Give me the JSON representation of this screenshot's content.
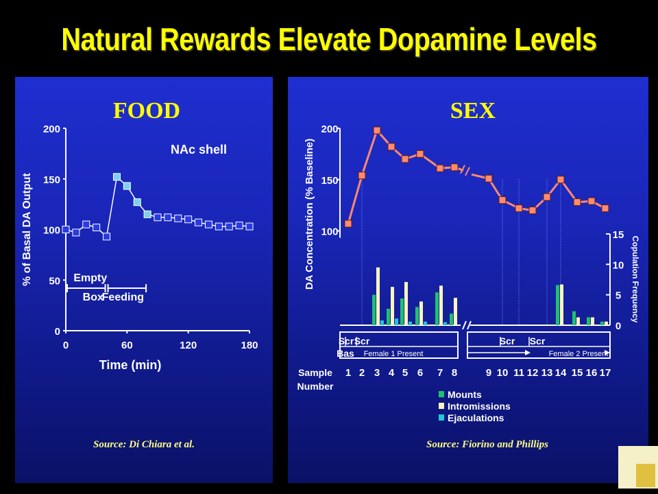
{
  "title": "Natural Rewards Elevate Dopamine Levels",
  "chart_data": [
    {
      "panel": "food",
      "type": "line",
      "title": "FOOD",
      "annotation": "NAc shell",
      "xlabel": "Time (min)",
      "ylabel": "% of Basal DA Output",
      "xlim": [
        0,
        180
      ],
      "ylim": [
        0,
        200
      ],
      "xticks": [
        "0",
        "60",
        "120",
        "180"
      ],
      "yticks": [
        "0",
        "50",
        "100",
        "150",
        "200"
      ],
      "grid": false,
      "phases": [
        {
          "label": "Empty",
          "sub_label": "Box",
          "x_start": 0,
          "x_end": 40
        },
        {
          "label": "Feeding",
          "x_start": 40,
          "x_end": 80
        }
      ],
      "series": [
        {
          "name": "",
          "x": [
            0,
            10,
            20,
            30,
            40,
            50,
            60,
            70,
            80,
            90,
            100,
            110,
            120,
            130,
            140,
            150,
            160,
            170,
            180
          ],
          "y": [
            100,
            97,
            105,
            102,
            93,
            152,
            143,
            127,
            115,
            112,
            112,
            111,
            110,
            107,
            105,
            103,
            103,
            104,
            103
          ],
          "highlight_indices": [
            5,
            6,
            7,
            8
          ]
        }
      ],
      "source": "Source: Di Chiara et al."
    },
    {
      "panel": "sex",
      "type": "line+bar",
      "title": "SEX",
      "ylabel": "DA Concentration (% Baseline)",
      "y2label": "Copulation Frequency",
      "xlabel": "Sample Number",
      "ylim": [
        100,
        200
      ],
      "yticks": [
        "100",
        "150",
        "200"
      ],
      "y2lim": [
        0,
        15
      ],
      "y2ticks": [
        "0",
        "5",
        "10",
        "15"
      ],
      "samples": [
        "1",
        "2",
        "3",
        "4",
        "5",
        "6",
        "7",
        "8",
        "9",
        "10",
        "11",
        "12",
        "13",
        "14",
        "15",
        "16",
        "17"
      ],
      "da_values": [
        107,
        154,
        198,
        182,
        170,
        175,
        161,
        162,
        151,
        130,
        122,
        120,
        133,
        150,
        128,
        129,
        122
      ],
      "segment_labels": [
        "Bas",
        "Scr",
        "Scr",
        "Female 1 Present",
        "Scr",
        "Scr",
        "Female 2 Present"
      ],
      "bars": {
        "series": [
          {
            "name": "Mounts",
            "color": "#20c070",
            "values": [
              0,
              0,
              5,
              2.7,
              4.4,
              3,
              5.4,
              1.9,
              0,
              0,
              0,
              0,
              0,
              6.6,
              2.3,
              1.3,
              0.6
            ]
          },
          {
            "name": "Intromissions",
            "color": "#f8f4c0",
            "values": [
              0,
              0,
              9.5,
              6.3,
              7.1,
              3.9,
              6.5,
              4.5,
              0,
              0,
              0,
              0,
              0,
              6.7,
              1.3,
              1.3,
              0.6
            ]
          },
          {
            "name": "Ejaculations",
            "color": "#20c8d8",
            "values": [
              0,
              0,
              0.8,
              1.1,
              0.6,
              0.6,
              0.5,
              0,
              0,
              0,
              0,
              0,
              0,
              0,
              0,
              0,
              0
            ]
          }
        ]
      },
      "legend": [
        "Mounts",
        "Intromissions",
        "Ejaculations"
      ],
      "legend_position": "bottom",
      "source": "Source: Fiorino and Phillips"
    }
  ],
  "colors": {
    "title": "#ffff00",
    "panel_top": "#1f2ecf",
    "panel_bottom": "#0a1166",
    "food_line": "#ffffff",
    "food_marker": "#2a3adf",
    "food_highlight": "#7ad0f0",
    "sex_line": "#ff8a70",
    "sex_marker": "#ff8a70",
    "panel_title": "#ffff00",
    "source_text": "#ffff80"
  }
}
